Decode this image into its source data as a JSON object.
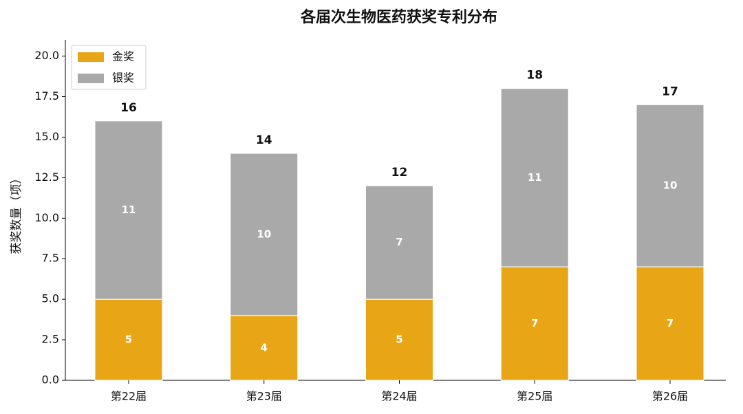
{
  "chart_data": {
    "type": "stacked-bar",
    "title": "各届次生物医药获奖专利分布",
    "ylabel": "获奖数量（项）",
    "categories": [
      "第22届",
      "第23届",
      "第24届",
      "第25届",
      "第26届"
    ],
    "series": [
      {
        "name": "金奖",
        "color": "#E8A617",
        "values": [
          5,
          4,
          5,
          7,
          7
        ]
      },
      {
        "name": "银奖",
        "color": "#A9A9A9",
        "values": [
          11,
          10,
          7,
          11,
          10
        ]
      }
    ],
    "totals": [
      16,
      14,
      12,
      18,
      17
    ],
    "ylim": [
      0,
      21
    ],
    "yticks": [
      {
        "value": 0,
        "label": "0.0"
      },
      {
        "value": 2.5,
        "label": "2.5"
      },
      {
        "value": 5,
        "label": "5.0"
      },
      {
        "value": 7.5,
        "label": "7.5"
      },
      {
        "value": 10,
        "label": "10.0"
      },
      {
        "value": 12.5,
        "label": "12.5"
      },
      {
        "value": 15,
        "label": "15.0"
      },
      {
        "value": 17.5,
        "label": "17.5"
      },
      {
        "value": 20,
        "label": "20.0"
      }
    ],
    "legend": "upper left"
  }
}
